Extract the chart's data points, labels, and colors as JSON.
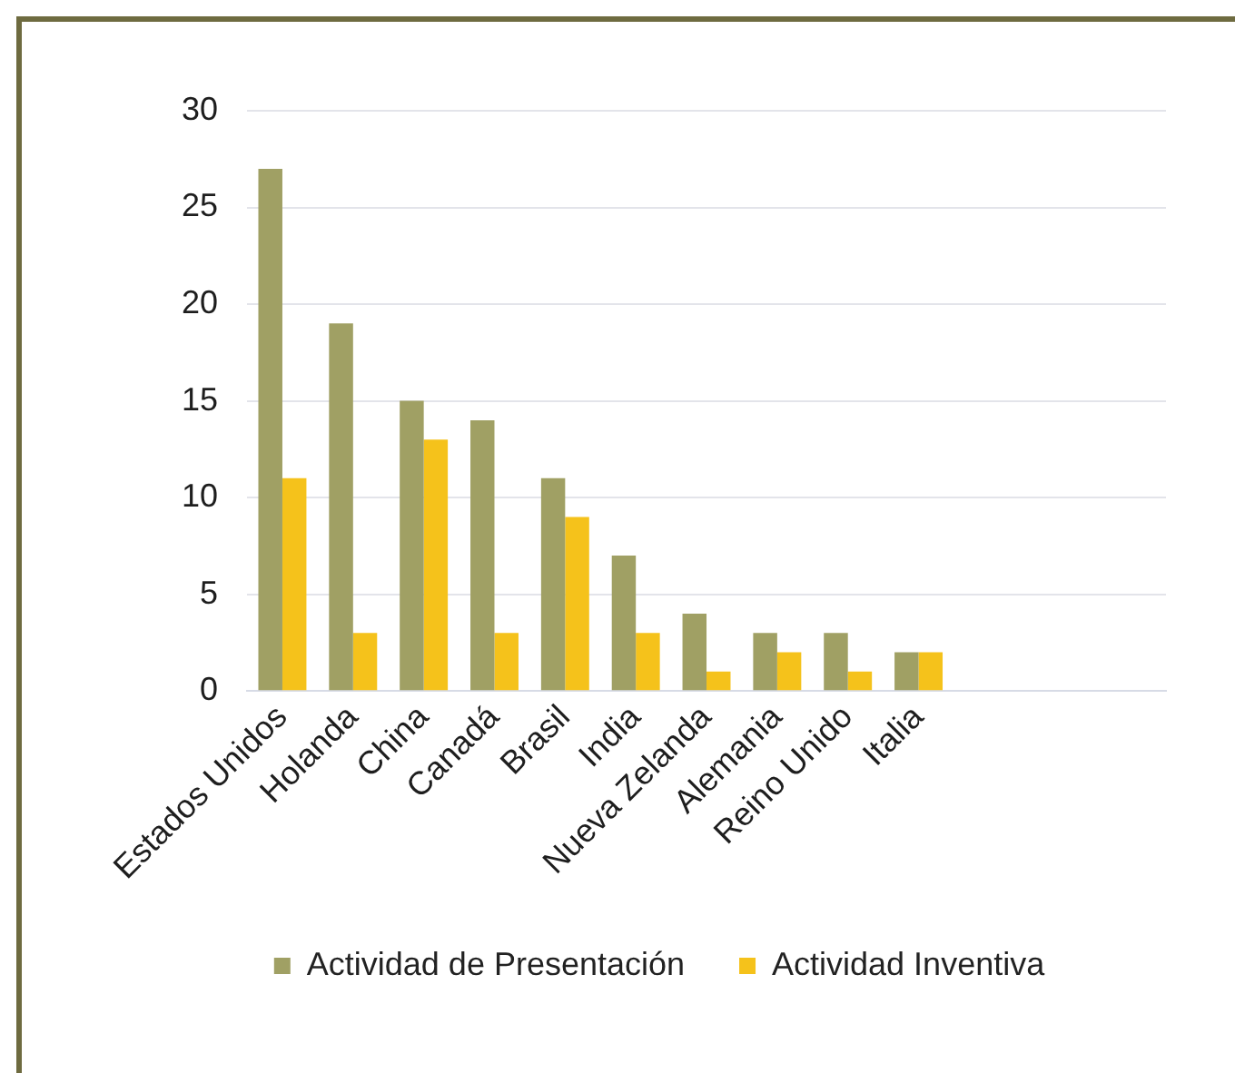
{
  "chart_data": {
    "type": "bar",
    "categories": [
      "Estados Unidos",
      "Holanda",
      "China",
      "Canadá",
      "Brasil",
      "India",
      "Nueva Zelanda",
      "Alemania",
      "Reino Unido",
      "Italia",
      null,
      null,
      null
    ],
    "series": [
      {
        "name": "Actividad de Presentación",
        "color": "#a0a064",
        "values": [
          27,
          19,
          15,
          14,
          11,
          7,
          4,
          3,
          3,
          2,
          null,
          null,
          null
        ]
      },
      {
        "name": "Actividad Inventiva",
        "color": "#f5c21b",
        "values": [
          11,
          3,
          13,
          3,
          9,
          3,
          1,
          2,
          1,
          2,
          null,
          null,
          null
        ]
      }
    ],
    "ylim": [
      0,
      30
    ],
    "yticks": [
      0,
      5,
      10,
      15,
      20,
      25,
      30
    ],
    "grid": "y",
    "legend": "bottom"
  }
}
